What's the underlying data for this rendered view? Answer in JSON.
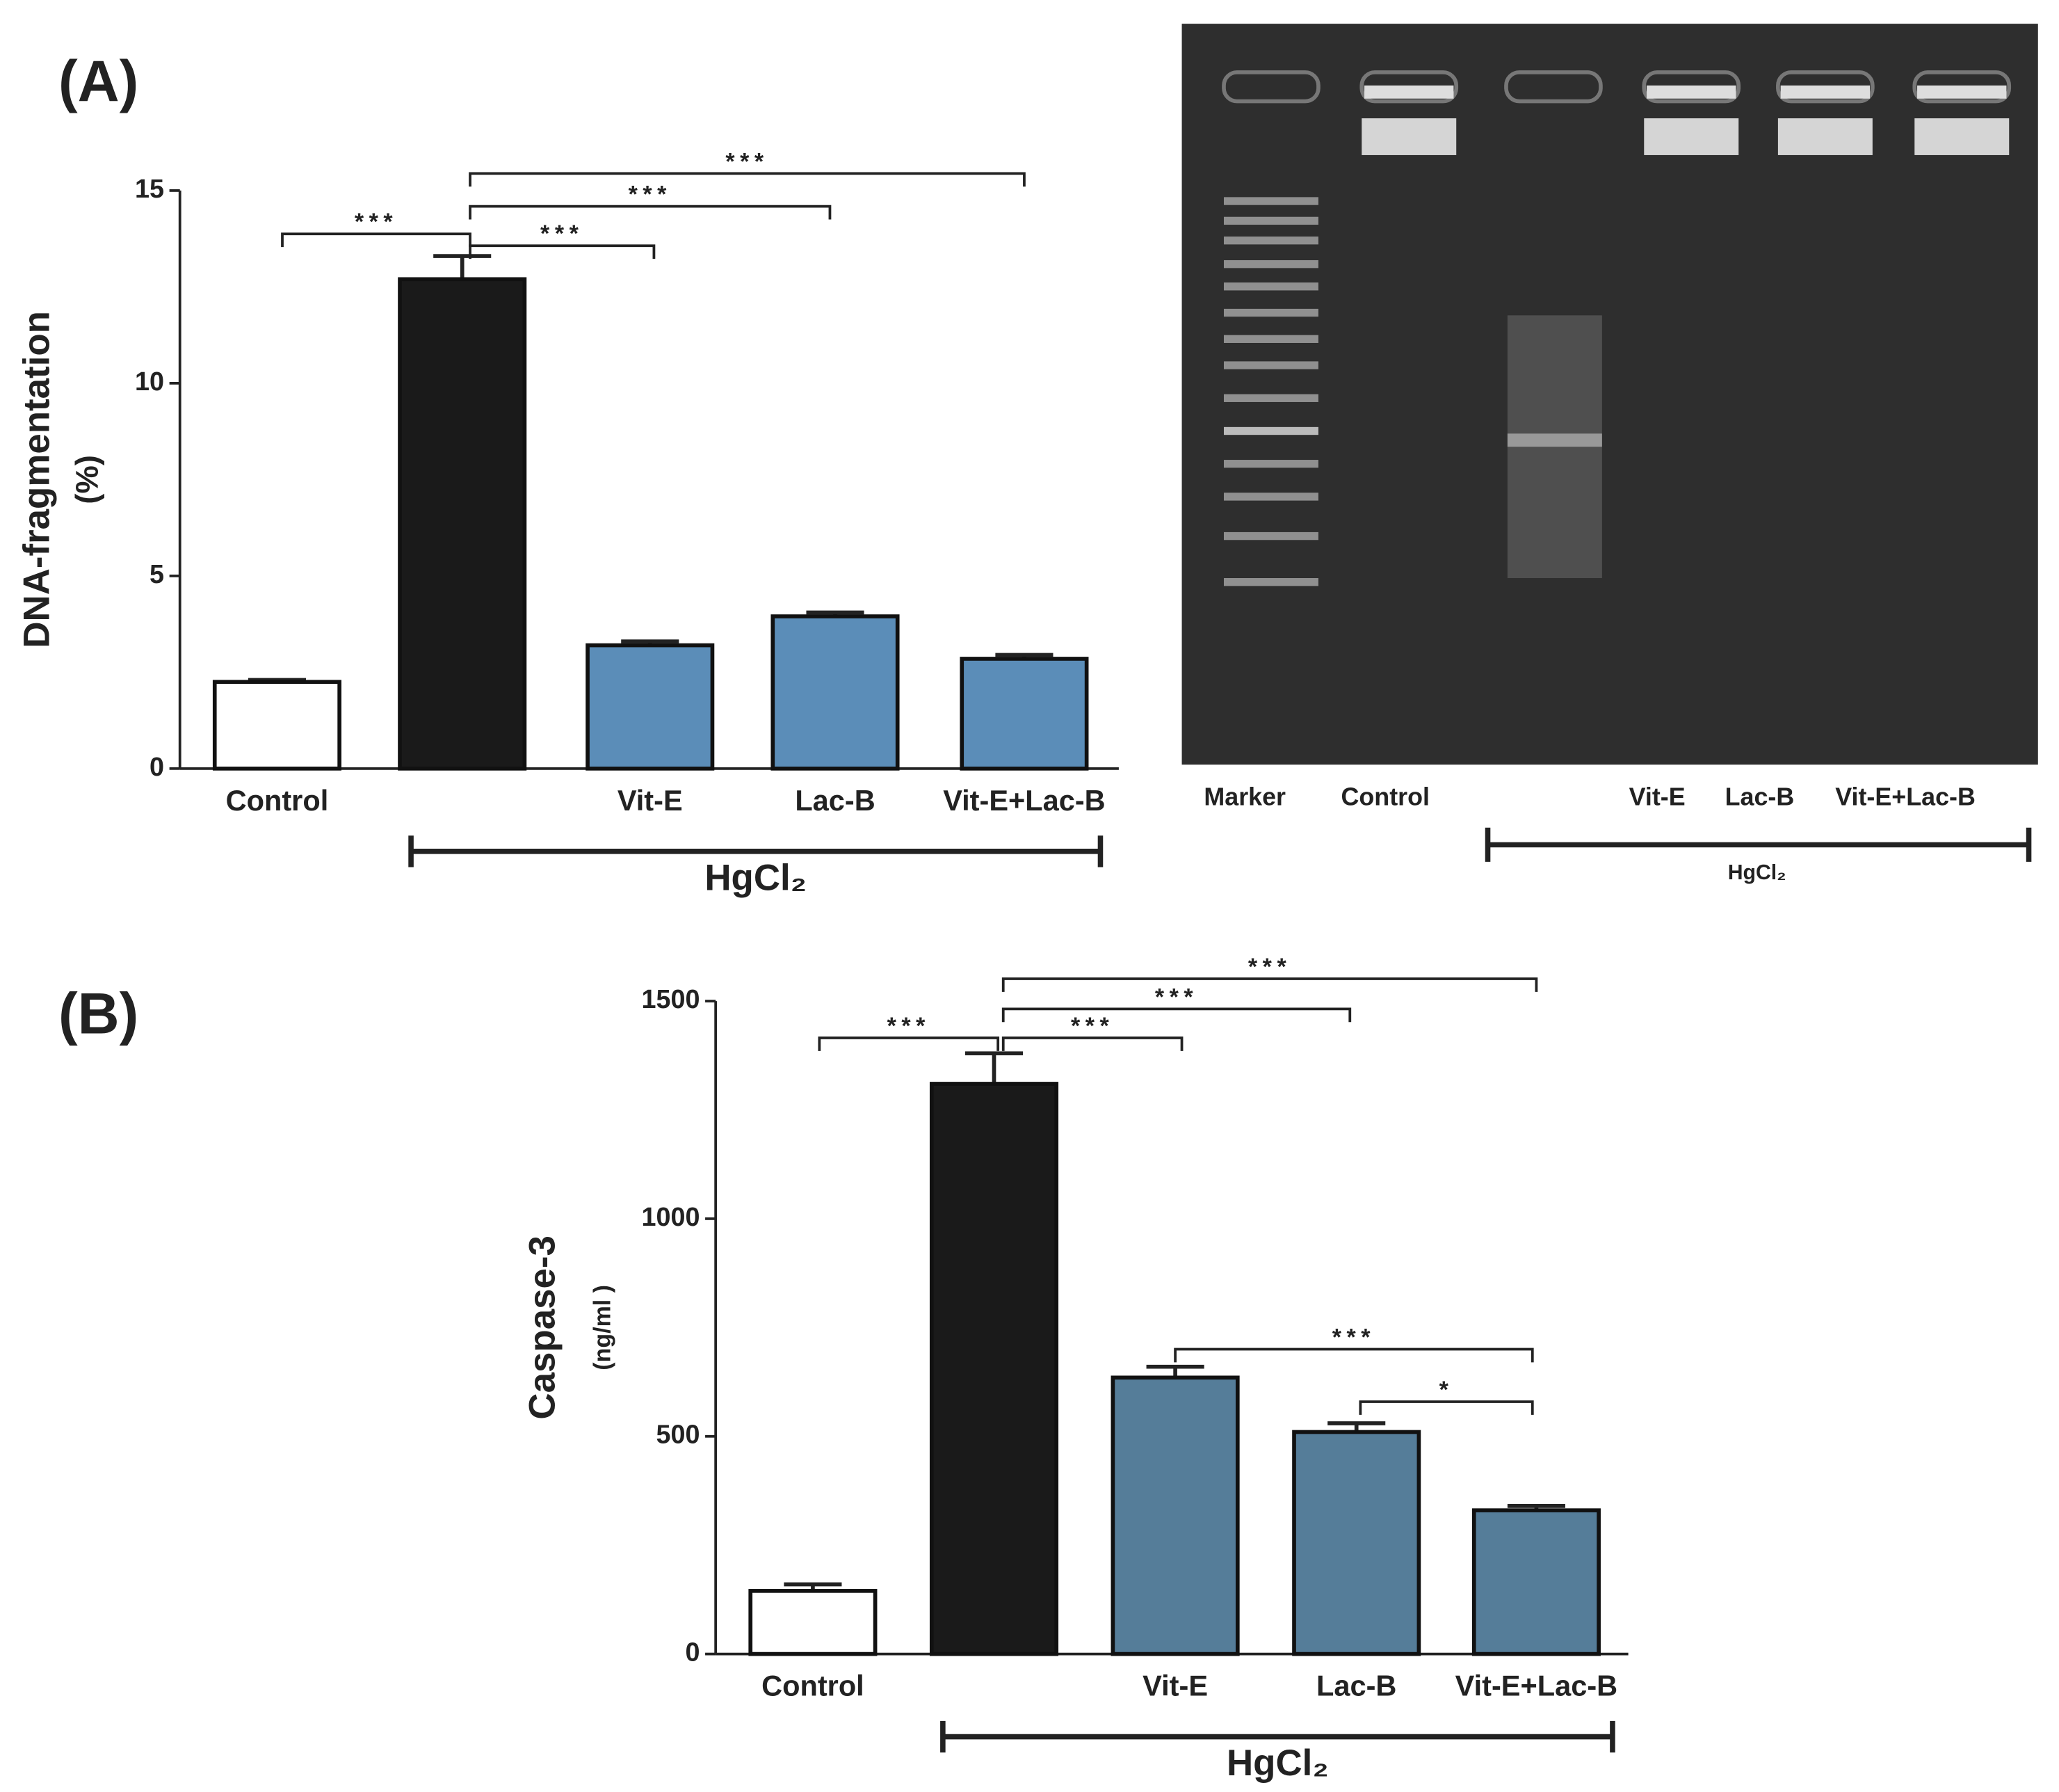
{
  "chart_data": [
    {
      "type": "bar",
      "panel": "(A)",
      "ylabel": "DNA-fragmentation",
      "ylabel2": "(%)",
      "categories": [
        "Control",
        null,
        "Vit-E",
        "Lac-B",
        "Vit-E+Lac-B"
      ],
      "values": [
        2.25,
        12.7,
        3.2,
        3.95,
        2.85
      ],
      "errors": [
        0.05,
        0.6,
        0.1,
        0.1,
        0.1
      ],
      "colors": [
        "#ffffff",
        "#1a1a1a",
        "#5b8db8",
        "#5b8db8",
        "#5b8db8"
      ],
      "ylim": [
        0,
        15
      ],
      "yticks": [
        0,
        5,
        10,
        15
      ],
      "group_label": "HgCl₂",
      "significance": [
        "***",
        "***",
        "***",
        "***"
      ]
    },
    {
      "type": "bar",
      "panel": "(B)",
      "ylabel": "Caspase-3",
      "ylabel2": "(ng/ml )",
      "categories": [
        "Control",
        null,
        "Vit-E",
        "Lac-B",
        "Vit-E+Lac-B"
      ],
      "values": [
        145,
        1310,
        635,
        510,
        330
      ],
      "errors": [
        15,
        70,
        25,
        20,
        10
      ],
      "colors": [
        "#ffffff",
        "#1a1a1a",
        "#557d99",
        "#557d99",
        "#557d99"
      ],
      "ylim": [
        0,
        1500
      ],
      "yticks": [
        0,
        500,
        1000,
        1500
      ],
      "group_label": "HgCl₂",
      "significance": [
        "***",
        "***",
        "***",
        "***",
        "***",
        "*"
      ]
    }
  ],
  "gel": {
    "lanes": [
      "Marker",
      "Control",
      "Vit-E",
      "Lac-B",
      "Vit-E+Lac-B"
    ],
    "group_label": "HgCl₂"
  }
}
